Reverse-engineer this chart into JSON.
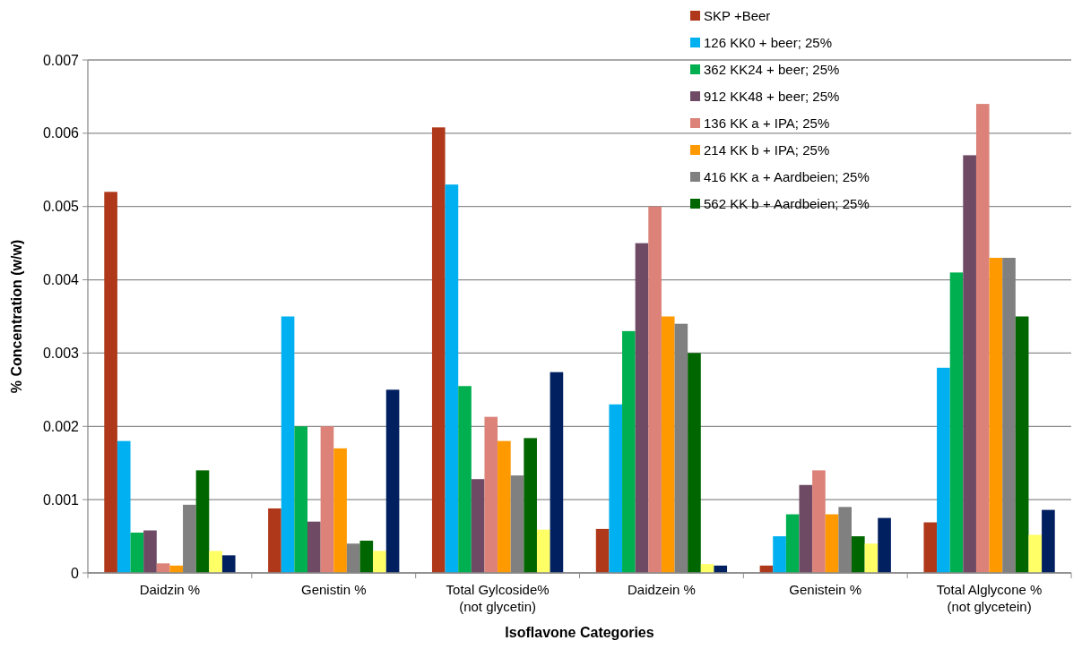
{
  "chart_data": {
    "type": "bar",
    "xlabel": "Isoflavone Categories",
    "ylabel": "% Concentration (w/w)",
    "categories": [
      "Daidzin %",
      "Genistin %",
      "Total Gylcoside%\n(not glycetin)",
      "Daidzein %",
      "Genistein %",
      "Total Alglycone %\n(not glycetein)"
    ],
    "series": [
      {
        "name": "SKP +Beer",
        "color": "#b0381a",
        "values": [
          0.0052,
          0.00088,
          0.00608,
          0.0006,
          0.0001,
          0.00069
        ]
      },
      {
        "name": "126 KK0 + beer; 25%",
        "color": "#00b0f0",
        "values": [
          0.0018,
          0.0035,
          0.0053,
          0.0023,
          0.0005,
          0.0028
        ]
      },
      {
        "name": "362 KK24 + beer; 25%",
        "color": "#00b050",
        "values": [
          0.00055,
          0.002,
          0.00255,
          0.0033,
          0.0008,
          0.0041
        ]
      },
      {
        "name": "912 KK48 + beer; 25%",
        "color": "#6e4a64",
        "values": [
          0.00058,
          0.0007,
          0.00128,
          0.0045,
          0.0012,
          0.0057
        ]
      },
      {
        "name": "136 KK a + IPA; 25%",
        "color": "#dc8278",
        "values": [
          0.00013,
          0.002,
          0.00213,
          0.005,
          0.0014,
          0.0064
        ]
      },
      {
        "name": "214 KK b + IPA; 25%",
        "color": "#ff9900",
        "values": [
          0.0001,
          0.0017,
          0.0018,
          0.0035,
          0.0008,
          0.0043
        ]
      },
      {
        "name": "416 KK a + Aardbeien; 25%",
        "color": "#808080",
        "values": [
          0.00093,
          0.0004,
          0.00133,
          0.0034,
          0.0009,
          0.0043
        ]
      },
      {
        "name": "562 KK b + Aardbeien; 25%",
        "color": "#006600",
        "values": [
          0.0014,
          0.00044,
          0.00184,
          0.003,
          0.0005,
          0.0035
        ]
      },
      {
        "color": "#ffff66",
        "values": [
          0.0003,
          0.0003,
          0.00059,
          0.00012,
          0.0004,
          0.00052
        ]
      },
      {
        "color": "#002060",
        "values": [
          0.00024,
          0.0025,
          0.00274,
          0.0001,
          0.00075,
          0.00086
        ]
      }
    ],
    "ylim": [
      0,
      0.007
    ],
    "yticks": [
      0,
      0.001,
      0.002,
      0.003,
      0.004,
      0.005,
      0.006,
      0.007
    ],
    "grid": "y",
    "legend": "top right"
  }
}
